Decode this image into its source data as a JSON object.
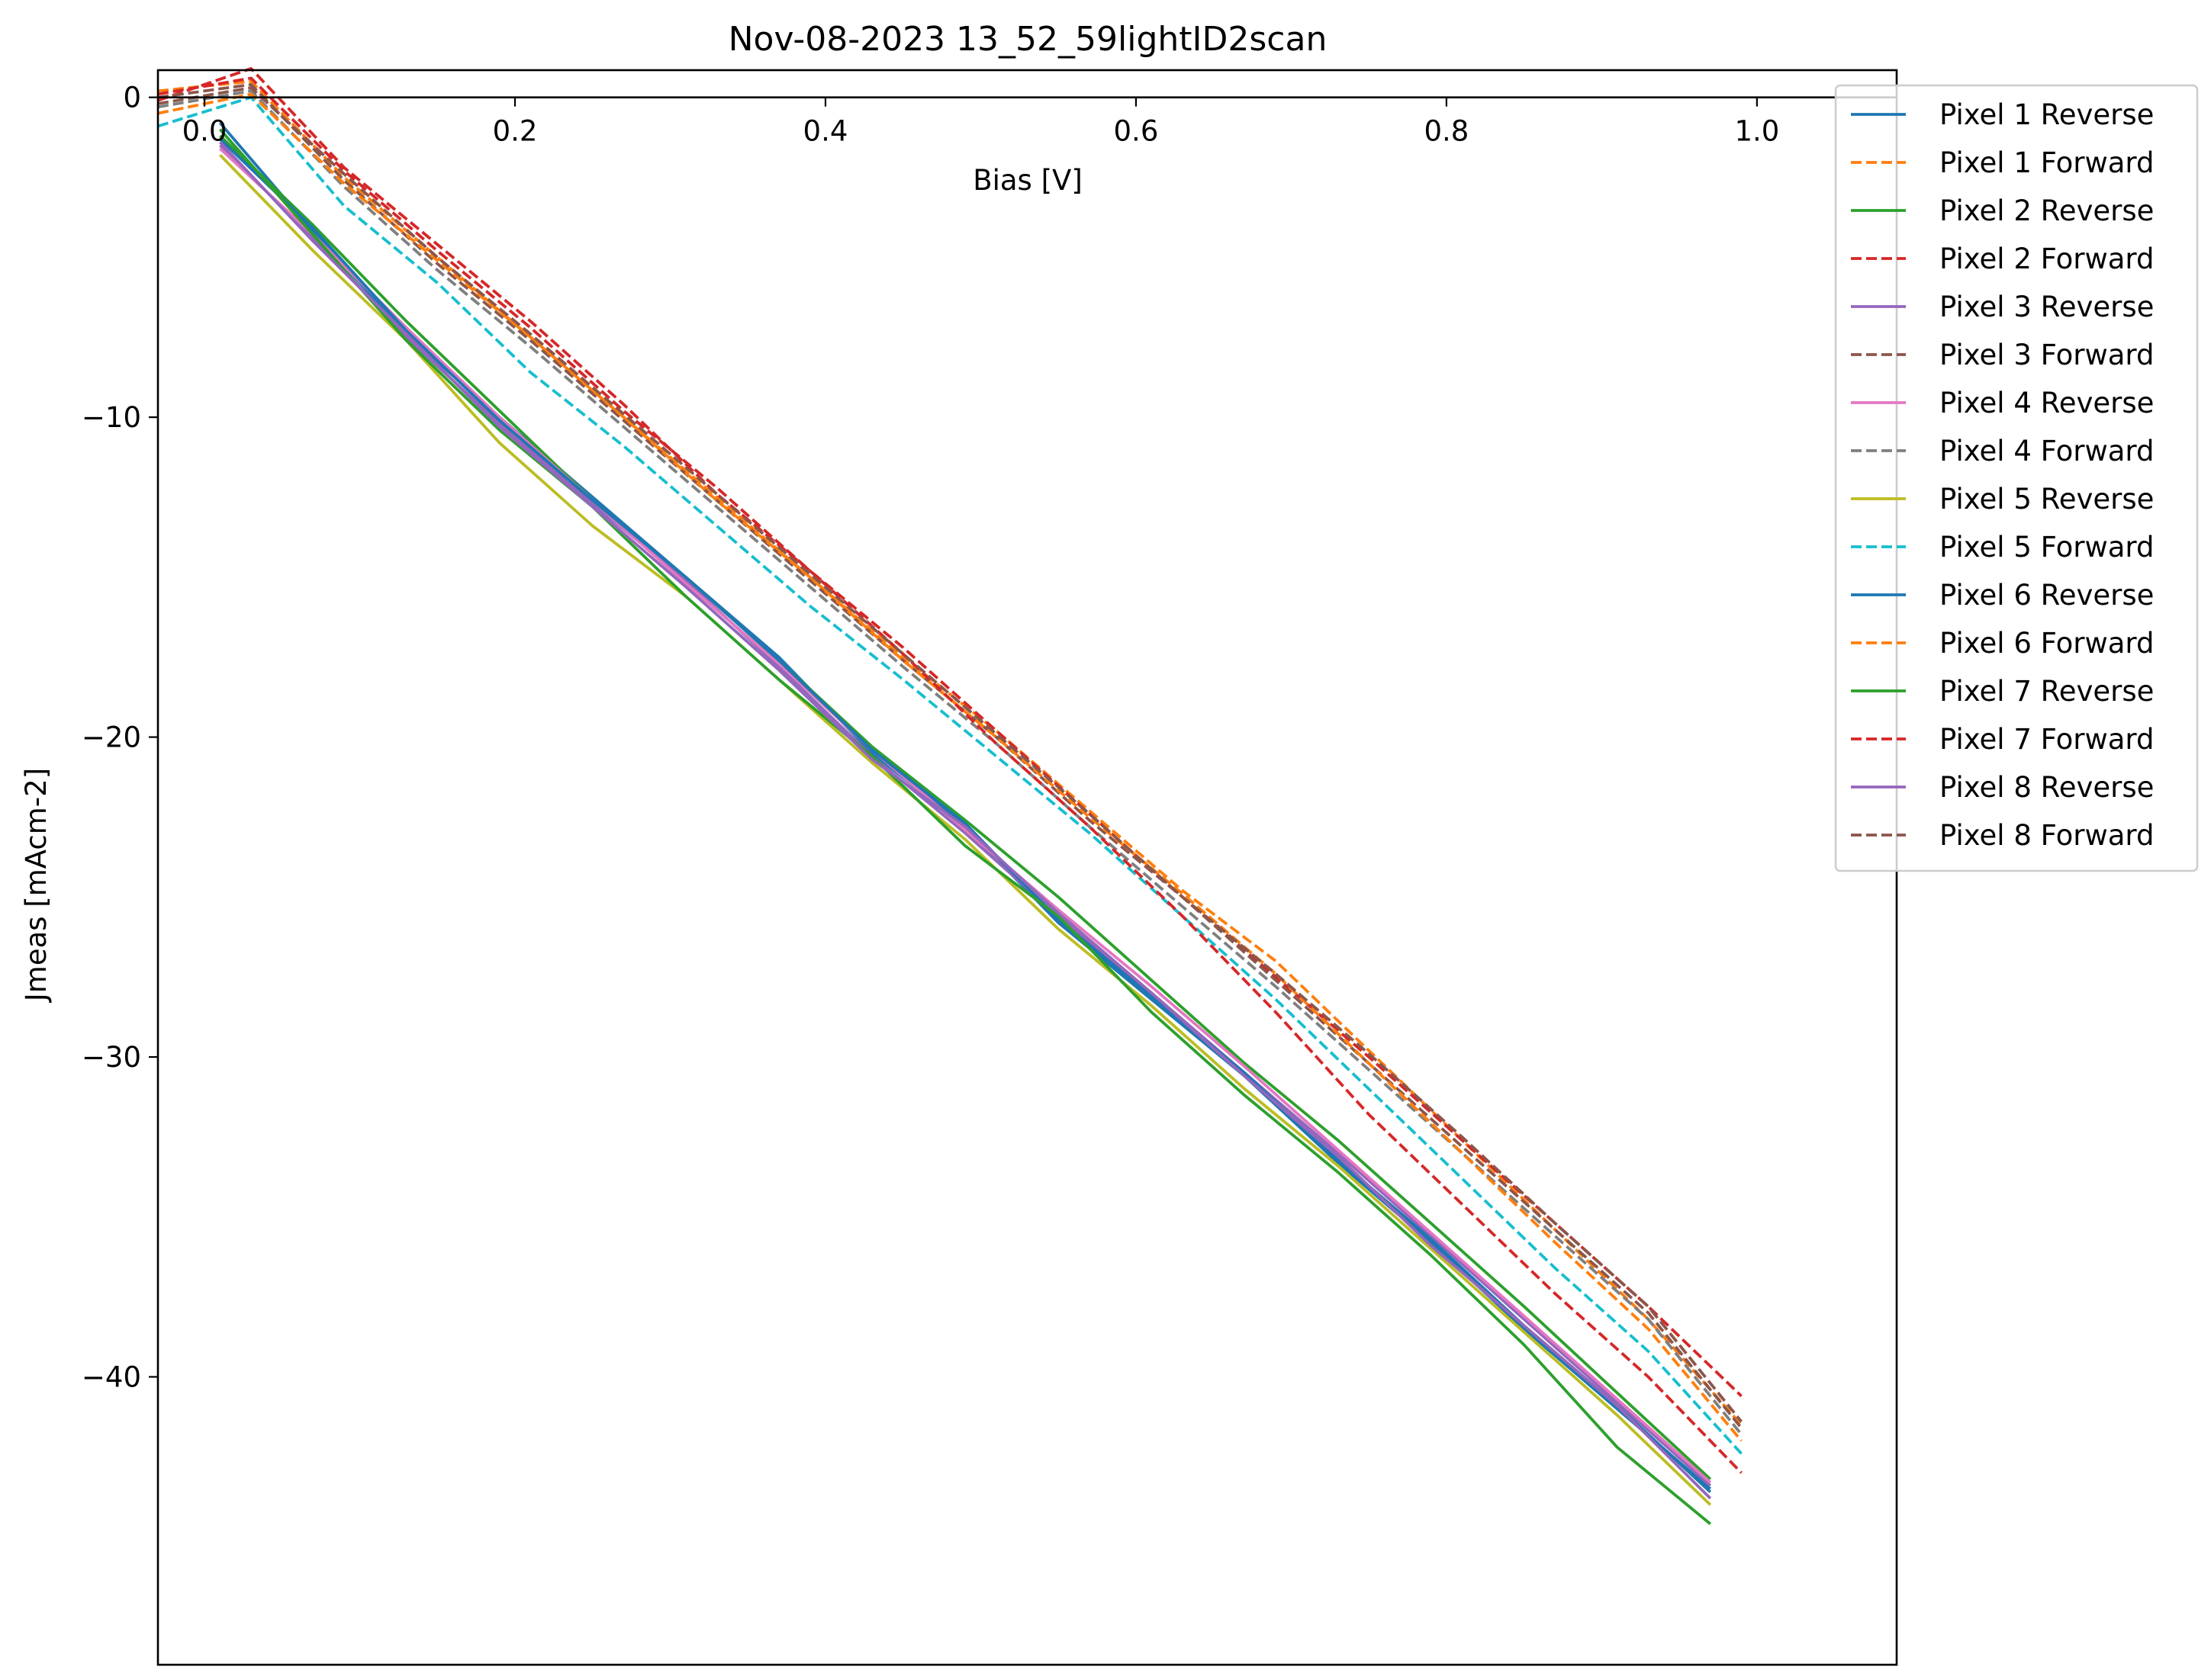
{
  "chart_data": {
    "type": "line",
    "title": "Nov-08-2023 13_52_59lightID2scan",
    "xlabel": "Bias [V]",
    "ylabel": "Jmeas [mAcm-2]",
    "xlim": [
      -0.03,
      1.09
    ],
    "ylim": [
      -49.0,
      0.85
    ],
    "xticks": [
      0.0,
      0.2,
      0.4,
      0.6,
      0.8,
      1.0
    ],
    "xtick_labels": [
      "0.0",
      "0.2",
      "0.4",
      "0.6",
      "0.8",
      "1.0"
    ],
    "yticks": [
      0,
      -10,
      -20,
      -30,
      -40
    ],
    "ytick_labels": [
      "0",
      "−10",
      "−20",
      "−30",
      "−40"
    ],
    "grid": false,
    "legend_position": "upper-right-outside",
    "series": [
      {
        "name": "Pixel 1 Reverse",
        "color": "#1f77b4",
        "style": "solid",
        "x": [
          0.01,
          0.07,
          0.13,
          0.19,
          0.25,
          0.31,
          0.37,
          0.43,
          0.49,
          0.55,
          0.61,
          0.67,
          0.73,
          0.79,
          0.85,
          0.91,
          0.97
        ],
        "y": [
          -0.8,
          -4.2,
          -7.4,
          -10.0,
          -12.5,
          -15.0,
          -17.5,
          -20.5,
          -22.8,
          -25.8,
          -28.2,
          -30.6,
          -33.3,
          -35.8,
          -38.5,
          -41.0,
          -43.5
        ]
      },
      {
        "name": "Pixel 1 Forward",
        "color": "#ff7f0e",
        "style": "dashed",
        "x": [
          -0.03,
          0.03,
          0.09,
          0.15,
          0.21,
          0.27,
          0.33,
          0.39,
          0.45,
          0.51,
          0.57,
          0.63,
          0.69,
          0.75,
          0.81,
          0.87,
          0.93,
          0.99
        ],
        "y": [
          0.2,
          0.5,
          -2.5,
          -5.0,
          -7.5,
          -10.0,
          -12.5,
          -15.0,
          -17.5,
          -19.8,
          -22.3,
          -24.8,
          -27.0,
          -29.8,
          -32.6,
          -35.4,
          -38.2,
          -41.5
        ]
      },
      {
        "name": "Pixel 2 Reverse",
        "color": "#2ca02c",
        "style": "solid",
        "x": [
          0.01,
          0.07,
          0.13,
          0.19,
          0.25,
          0.31,
          0.37,
          0.43,
          0.49,
          0.55,
          0.61,
          0.67,
          0.73,
          0.79,
          0.85,
          0.91,
          0.97
        ],
        "y": [
          -1.2,
          -4.0,
          -7.0,
          -9.8,
          -12.6,
          -15.0,
          -17.6,
          -20.3,
          -22.6,
          -25.0,
          -27.6,
          -30.2,
          -32.6,
          -35.2,
          -37.8,
          -40.5,
          -43.2
        ]
      },
      {
        "name": "Pixel 2 Forward",
        "color": "#d62728",
        "style": "dashed",
        "x": [
          -0.03,
          0.03,
          0.09,
          0.15,
          0.21,
          0.27,
          0.33,
          0.39,
          0.45,
          0.51,
          0.57,
          0.63,
          0.69,
          0.75,
          0.81,
          0.87,
          0.93,
          0.99
        ],
        "y": [
          -0.1,
          0.9,
          -2.2,
          -4.6,
          -7.0,
          -9.6,
          -12.4,
          -14.8,
          -17.2,
          -19.8,
          -22.4,
          -25.0,
          -27.5,
          -30.0,
          -32.6,
          -35.2,
          -37.8,
          -40.6
        ]
      },
      {
        "name": "Pixel 3 Reverse",
        "color": "#9467bd",
        "style": "solid",
        "x": [
          0.01,
          0.07,
          0.13,
          0.19,
          0.25,
          0.31,
          0.37,
          0.43,
          0.49,
          0.55,
          0.61,
          0.67,
          0.73,
          0.79,
          0.85,
          0.91,
          0.97
        ],
        "y": [
          -1.5,
          -4.4,
          -7.5,
          -10.2,
          -12.7,
          -15.1,
          -17.8,
          -20.6,
          -23.0,
          -25.6,
          -28.0,
          -30.5,
          -33.0,
          -35.6,
          -38.2,
          -40.8,
          -43.4
        ]
      },
      {
        "name": "Pixel 3 Forward",
        "color": "#8c564b",
        "style": "dashed",
        "x": [
          -0.03,
          0.03,
          0.09,
          0.15,
          0.21,
          0.27,
          0.33,
          0.39,
          0.45,
          0.51,
          0.57,
          0.63,
          0.69,
          0.75,
          0.81,
          0.87,
          0.93,
          0.99
        ],
        "y": [
          0.0,
          0.4,
          -2.6,
          -5.2,
          -7.6,
          -10.1,
          -12.6,
          -15.1,
          -17.6,
          -20.0,
          -22.6,
          -25.0,
          -27.6,
          -30.2,
          -32.8,
          -35.4,
          -38.0,
          -41.6
        ]
      },
      {
        "name": "Pixel 4 Reverse",
        "color": "#e377c2",
        "style": "solid",
        "x": [
          0.01,
          0.07,
          0.13,
          0.19,
          0.25,
          0.31,
          0.37,
          0.43,
          0.49,
          0.55,
          0.61,
          0.67,
          0.73,
          0.79,
          0.85,
          0.91,
          0.97
        ],
        "y": [
          -1.6,
          -4.3,
          -7.2,
          -10.0,
          -12.6,
          -15.2,
          -17.7,
          -20.4,
          -22.9,
          -25.4,
          -27.8,
          -30.3,
          -32.9,
          -35.5,
          -38.1,
          -40.7,
          -43.3
        ]
      },
      {
        "name": "Pixel 4 Forward",
        "color": "#7f7f7f",
        "style": "dashed",
        "x": [
          -0.03,
          0.03,
          0.09,
          0.15,
          0.21,
          0.27,
          0.33,
          0.39,
          0.45,
          0.51,
          0.57,
          0.63,
          0.69,
          0.75,
          0.81,
          0.87,
          0.93,
          0.99
        ],
        "y": [
          -0.3,
          0.2,
          -2.8,
          -5.4,
          -7.8,
          -10.3,
          -12.8,
          -15.3,
          -17.8,
          -20.2,
          -22.8,
          -25.3,
          -27.8,
          -30.4,
          -33.0,
          -35.6,
          -38.2,
          -41.8
        ]
      },
      {
        "name": "Pixel 5 Reverse",
        "color": "#bcbd22",
        "style": "solid",
        "x": [
          0.01,
          0.07,
          0.13,
          0.19,
          0.25,
          0.31,
          0.37,
          0.43,
          0.49,
          0.55,
          0.61,
          0.67,
          0.73,
          0.79,
          0.85,
          0.91,
          0.97
        ],
        "y": [
          -1.8,
          -4.8,
          -7.6,
          -10.8,
          -13.4,
          -15.6,
          -18.2,
          -20.8,
          -23.2,
          -26.0,
          -28.4,
          -31.0,
          -33.4,
          -36.0,
          -38.6,
          -41.2,
          -44.0
        ]
      },
      {
        "name": "Pixel 5 Forward",
        "color": "#17becf",
        "style": "dashed",
        "x": [
          -0.03,
          0.03,
          0.09,
          0.15,
          0.21,
          0.27,
          0.33,
          0.39,
          0.45,
          0.51,
          0.57,
          0.63,
          0.69,
          0.75,
          0.81,
          0.87,
          0.93,
          0.99
        ],
        "y": [
          -0.9,
          0.0,
          -3.4,
          -5.8,
          -8.6,
          -10.9,
          -13.4,
          -15.9,
          -18.2,
          -20.6,
          -23.0,
          -25.6,
          -28.2,
          -31.0,
          -33.8,
          -36.6,
          -39.2,
          -42.4
        ]
      },
      {
        "name": "Pixel 6 Reverse",
        "color": "#1f77b4",
        "style": "solid",
        "x": [
          0.01,
          0.07,
          0.13,
          0.19,
          0.25,
          0.31,
          0.37,
          0.43,
          0.49,
          0.55,
          0.61,
          0.67,
          0.73,
          0.79,
          0.85,
          0.91,
          0.97
        ],
        "y": [
          -1.3,
          -4.1,
          -7.3,
          -10.1,
          -12.6,
          -15.0,
          -17.6,
          -20.4,
          -22.7,
          -25.7,
          -28.1,
          -30.5,
          -33.2,
          -35.7,
          -38.4,
          -40.9,
          -43.6
        ]
      },
      {
        "name": "Pixel 6 Forward",
        "color": "#ff7f0e",
        "style": "dashed",
        "x": [
          -0.03,
          0.03,
          0.09,
          0.15,
          0.21,
          0.27,
          0.33,
          0.39,
          0.45,
          0.51,
          0.57,
          0.63,
          0.69,
          0.75,
          0.81,
          0.87,
          0.93,
          0.99
        ],
        "y": [
          -0.5,
          0.1,
          -2.7,
          -5.1,
          -7.5,
          -10.0,
          -12.6,
          -15.0,
          -17.6,
          -20.0,
          -22.5,
          -24.9,
          -27.4,
          -30.2,
          -33.0,
          -35.8,
          -38.5,
          -42.0
        ]
      },
      {
        "name": "Pixel 7 Reverse",
        "color": "#2ca02c",
        "style": "solid",
        "x": [
          0.01,
          0.07,
          0.13,
          0.19,
          0.25,
          0.31,
          0.37,
          0.43,
          0.49,
          0.55,
          0.61,
          0.67,
          0.73,
          0.79,
          0.85,
          0.91,
          0.97
        ],
        "y": [
          -1.0,
          -4.3,
          -7.6,
          -10.4,
          -12.8,
          -15.6,
          -18.2,
          -20.6,
          -23.4,
          -25.6,
          -28.6,
          -31.2,
          -33.6,
          -36.2,
          -39.0,
          -42.2,
          -44.6
        ]
      },
      {
        "name": "Pixel 7 Forward",
        "color": "#d62728",
        "style": "dashed",
        "x": [
          -0.03,
          0.03,
          0.09,
          0.15,
          0.21,
          0.27,
          0.33,
          0.39,
          0.45,
          0.51,
          0.57,
          0.63,
          0.69,
          0.75,
          0.81,
          0.87,
          0.93,
          0.99
        ],
        "y": [
          0.1,
          0.6,
          -2.3,
          -4.8,
          -7.2,
          -9.8,
          -12.2,
          -14.8,
          -17.4,
          -20.2,
          -22.8,
          -25.6,
          -28.6,
          -31.8,
          -34.6,
          -37.4,
          -40.0,
          -43.0
        ]
      },
      {
        "name": "Pixel 8 Reverse",
        "color": "#9467bd",
        "style": "solid",
        "x": [
          0.01,
          0.07,
          0.13,
          0.19,
          0.25,
          0.31,
          0.37,
          0.43,
          0.49,
          0.55,
          0.61,
          0.67,
          0.73,
          0.79,
          0.85,
          0.91,
          0.97
        ],
        "y": [
          -1.4,
          -4.5,
          -7.4,
          -10.3,
          -12.8,
          -15.3,
          -17.9,
          -20.7,
          -22.8,
          -25.5,
          -28.0,
          -30.6,
          -33.1,
          -35.9,
          -38.4,
          -40.9,
          -43.8
        ]
      },
      {
        "name": "Pixel 8 Forward",
        "color": "#8c564b",
        "style": "dashed",
        "x": [
          -0.03,
          0.03,
          0.09,
          0.15,
          0.21,
          0.27,
          0.33,
          0.39,
          0.45,
          0.51,
          0.57,
          0.63,
          0.69,
          0.75,
          0.81,
          0.87,
          0.93,
          0.99
        ],
        "y": [
          -0.2,
          0.3,
          -2.4,
          -5.0,
          -7.4,
          -9.9,
          -12.4,
          -14.9,
          -17.4,
          -19.9,
          -22.4,
          -25.0,
          -27.4,
          -29.9,
          -32.5,
          -35.2,
          -37.8,
          -41.4
        ]
      }
    ]
  }
}
